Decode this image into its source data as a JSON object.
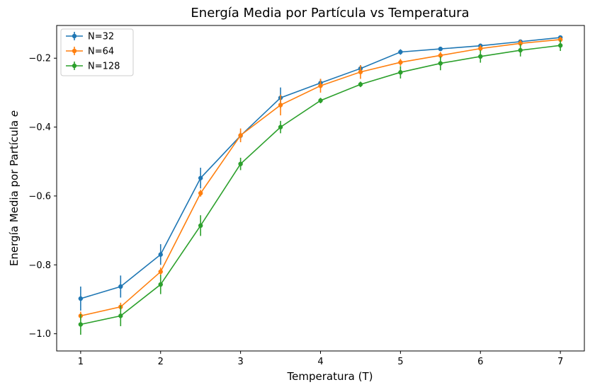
{
  "chart_data": {
    "type": "line",
    "title": "Energía Media por Partícula vs Temperatura",
    "xlabel": "Temperatura (T)",
    "ylabel": "Energía Media por Partícula ",
    "ylabel_symbol": "e",
    "xlim": [
      0.7,
      7.3
    ],
    "ylim": [
      -1.05,
      -0.105
    ],
    "x_ticks": [
      1,
      2,
      3,
      4,
      5,
      6,
      7
    ],
    "x_tick_labels": [
      "1",
      "2",
      "3",
      "4",
      "5",
      "6",
      "7"
    ],
    "y_ticks": [
      -1.0,
      -0.8,
      -0.6,
      -0.4,
      -0.2
    ],
    "y_tick_labels": [
      "−1.0",
      "−0.8",
      "−0.6",
      "−0.4",
      "−0.2"
    ],
    "grid": false,
    "legend_position": "top-left",
    "x": [
      1,
      1.5,
      2,
      2.5,
      3,
      3.5,
      4,
      4.5,
      5,
      5.5,
      6,
      6.5,
      7
    ],
    "series": [
      {
        "name": "N=32",
        "color": "#1f77b4",
        "values": [
          -0.898,
          -0.863,
          -0.77,
          -0.548,
          -0.425,
          -0.315,
          -0.272,
          -0.23,
          -0.182,
          -0.173,
          -0.164,
          -0.152,
          -0.14
        ],
        "errors": [
          0.035,
          0.032,
          0.03,
          0.03,
          0.012,
          0.03,
          0.012,
          0.01,
          0.008,
          0.006,
          0.006,
          0.006,
          0.006
        ]
      },
      {
        "name": "N=64",
        "color": "#ff7f0e",
        "values": [
          -0.948,
          -0.922,
          -0.82,
          -0.592,
          -0.424,
          -0.336,
          -0.28,
          -0.24,
          -0.212,
          -0.192,
          -0.172,
          -0.157,
          -0.146
        ],
        "errors": [
          0.012,
          0.012,
          0.012,
          0.01,
          0.02,
          0.03,
          0.02,
          0.02,
          0.01,
          0.01,
          0.01,
          0.01,
          0.008
        ]
      },
      {
        "name": "N=128",
        "color": "#2ca02c",
        "values": [
          -0.973,
          -0.948,
          -0.857,
          -0.686,
          -0.507,
          -0.4,
          -0.323,
          -0.276,
          -0.241,
          -0.215,
          -0.195,
          -0.177,
          -0.163
        ],
        "errors": [
          0.03,
          0.03,
          0.028,
          0.03,
          0.018,
          0.018,
          0.008,
          0.008,
          0.018,
          0.02,
          0.018,
          0.018,
          0.016
        ]
      }
    ]
  }
}
